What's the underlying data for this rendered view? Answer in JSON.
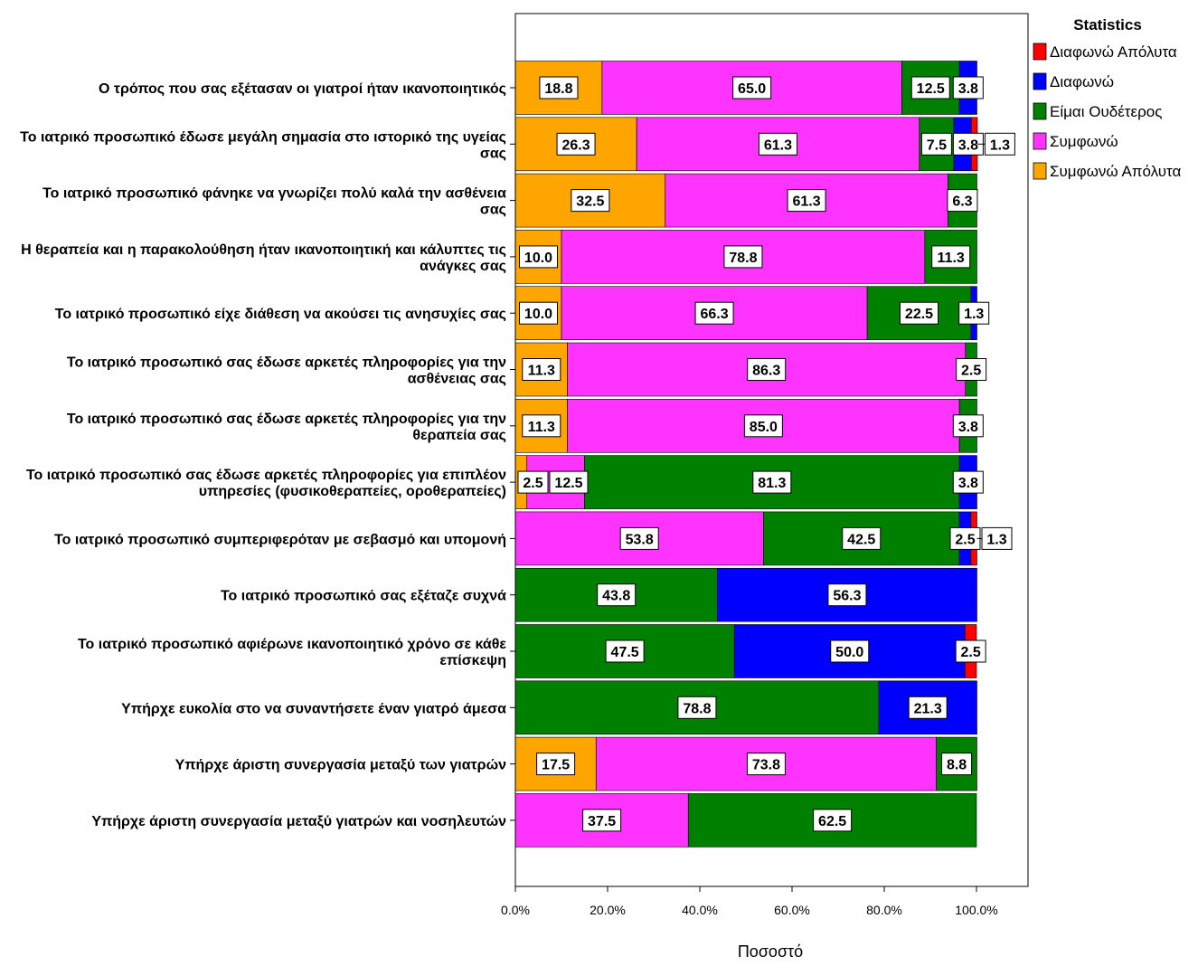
{
  "chart_data": {
    "type": "bar",
    "orientation": "horizontal",
    "stacked": true,
    "xlabel": "Ποσοστό",
    "xlim": [
      0,
      100
    ],
    "xticks": [
      "0.0%",
      "20.0%",
      "40.0%",
      "60.0%",
      "80.0%",
      "100.0%"
    ],
    "legend": {
      "title": "Statistics",
      "placement": "top-right",
      "entries": [
        "Διαφωνώ Απόλυτα",
        "Διαφωνώ",
        "Είμαι Ουδέτερος",
        "Συμφωνώ",
        "Συμφωνώ Απόλυτα"
      ]
    },
    "colors": {
      "Συμφωνώ Απόλυτα": "#FFA500",
      "Συμφωνώ": "#FF33FF",
      "Είμαι Ουδέτερος": "#008000",
      "Διαφωνώ": "#0000FF",
      "Διαφωνώ Απόλυτα": "#FF0000"
    },
    "stack_order": [
      "Συμφωνώ Απόλυτα",
      "Συμφωνώ",
      "Είμαι Ουδέτερος",
      "Διαφωνώ",
      "Διαφωνώ Απόλυτα"
    ],
    "categories": [
      [
        "Ο τρόπος που σας εξέτασαν οι γιατροί ήταν ικανοποιητικός"
      ],
      [
        "Το ιατρικό προσωπικό έδωσε μεγάλη σημασία στο ιστορικό της υγείας",
        "σας"
      ],
      [
        "Το ιατρικό προσωπικό φάνηκε να γνωρίζει πολύ καλά την ασθένεια",
        "σας"
      ],
      [
        "Η θεραπεία και η παρακολούθηση ήταν ικανοποιητική και κάλυπτες τις",
        "ανάγκες σας"
      ],
      [
        "Το ιατρικό προσωπικό είχε διάθεση να ακούσει τις ανησυχίες σας"
      ],
      [
        "Το ιατρικό προσωπικό σας έδωσε αρκετές πληροφορίες για την",
        "ασθένειας σας"
      ],
      [
        "Το ιατρικό προσωπικό σας έδωσε αρκετές πληροφορίες για την",
        "θεραπεία σας"
      ],
      [
        "Το ιατρικό προσωπικό σας έδωσε αρκετές πληροφορίες για επιπλέον",
        "υπηρεσίες (φυσικοθεραπείες, οροθεραπείες)"
      ],
      [
        "Το ιατρικό προσωπικό συμπεριφερόταν με σεβασμό και υπομονή"
      ],
      [
        "Το ιατρικό προσωπικό σας εξέταζε συχνά"
      ],
      [
        "Το ιατρικό προσωπικό αφιέρωνε ικανοποιητικό χρόνο σε κάθε",
        "επίσκεψη"
      ],
      [
        "Υπήρχε ευκολία στο να συναντήσετε έναν γιατρό άμεσα"
      ],
      [
        "Υπήρχε άριστη συνεργασία μεταξύ των γιατρών"
      ],
      [
        "Υπήρχε άριστη συνεργασία μεταξύ γιατρών και νοσηλευτών"
      ]
    ],
    "series": [
      {
        "name": "Συμφωνώ Απόλυτα",
        "values": [
          18.8,
          26.3,
          32.5,
          10.0,
          10.0,
          11.3,
          11.3,
          2.5,
          0,
          0,
          0,
          0,
          17.5,
          0
        ]
      },
      {
        "name": "Συμφωνώ",
        "values": [
          65.0,
          61.3,
          61.3,
          78.8,
          66.3,
          86.3,
          85.0,
          12.5,
          53.8,
          0,
          0,
          0,
          73.8,
          37.5
        ]
      },
      {
        "name": "Είμαι Ουδέτερος",
        "values": [
          12.5,
          7.5,
          6.3,
          11.3,
          22.5,
          2.5,
          3.8,
          81.3,
          42.5,
          43.8,
          47.5,
          78.8,
          8.8,
          62.5
        ]
      },
      {
        "name": "Διαφωνώ",
        "values": [
          3.8,
          3.8,
          0,
          0,
          1.3,
          0,
          0,
          3.8,
          2.5,
          56.3,
          50.0,
          21.3,
          0,
          0
        ]
      },
      {
        "name": "Διαφωνώ Απόλυτα",
        "values": [
          0,
          1.3,
          0,
          0,
          0,
          0,
          0,
          0,
          1.3,
          0,
          2.5,
          0,
          0,
          0
        ]
      }
    ],
    "data_labels": [
      [
        {
          "text": "18.8",
          "series": 0
        },
        {
          "text": "65.0",
          "series": 1
        },
        {
          "text": "12.5",
          "series": 2
        },
        {
          "text": "3.8",
          "series": 3
        }
      ],
      [
        {
          "text": "26.3",
          "series": 0
        },
        {
          "text": "61.3",
          "series": 1
        },
        {
          "text": "7.5",
          "series": 2
        },
        {
          "text": "3.8",
          "series": 3
        },
        {
          "text": "1.3",
          "series": 4
        }
      ],
      [
        {
          "text": "32.5",
          "series": 0
        },
        {
          "text": "61.3",
          "series": 1
        },
        {
          "text": "6.3",
          "series": 2
        }
      ],
      [
        {
          "text": "10.0",
          "series": 0
        },
        {
          "text": "78.8",
          "series": 1
        },
        {
          "text": "11.3",
          "series": 2
        }
      ],
      [
        {
          "text": "10.0",
          "series": 0
        },
        {
          "text": "66.3",
          "series": 1
        },
        {
          "text": "22.5",
          "series": 2
        },
        {
          "text": "1.3",
          "series": 3
        }
      ],
      [
        {
          "text": "11.3",
          "series": 0
        },
        {
          "text": "86.3",
          "series": 1
        },
        {
          "text": "2.5",
          "series": 2
        }
      ],
      [
        {
          "text": "11.3",
          "series": 0
        },
        {
          "text": "85.0",
          "series": 1
        },
        {
          "text": "3.8",
          "series": 2
        }
      ],
      [
        {
          "text": "2.5",
          "series": 0
        },
        {
          "text": "12.5",
          "series": 1
        },
        {
          "text": "81.3",
          "series": 2
        },
        {
          "text": "3.8",
          "series": 3
        }
      ],
      [
        {
          "text": "53.8",
          "series": 1
        },
        {
          "text": "42.5",
          "series": 2
        },
        {
          "text": "2.5",
          "series": 3
        },
        {
          "text": "1.3",
          "series": 4
        }
      ],
      [
        {
          "text": "43.8",
          "series": 2
        },
        {
          "text": "56.3",
          "series": 3
        }
      ],
      [
        {
          "text": "47.5",
          "series": 2
        },
        {
          "text": "50.0",
          "series": 3
        },
        {
          "text": "2.5",
          "series": 4
        }
      ],
      [
        {
          "text": "78.8",
          "series": 2
        },
        {
          "text": "21.3",
          "series": 3
        }
      ],
      [
        {
          "text": "17.5",
          "series": 0
        },
        {
          "text": "73.8",
          "series": 1
        },
        {
          "text": "8.8",
          "series": 2
        }
      ],
      [
        {
          "text": "37.5",
          "series": 1
        },
        {
          "text": "62.5",
          "series": 2
        }
      ]
    ]
  }
}
